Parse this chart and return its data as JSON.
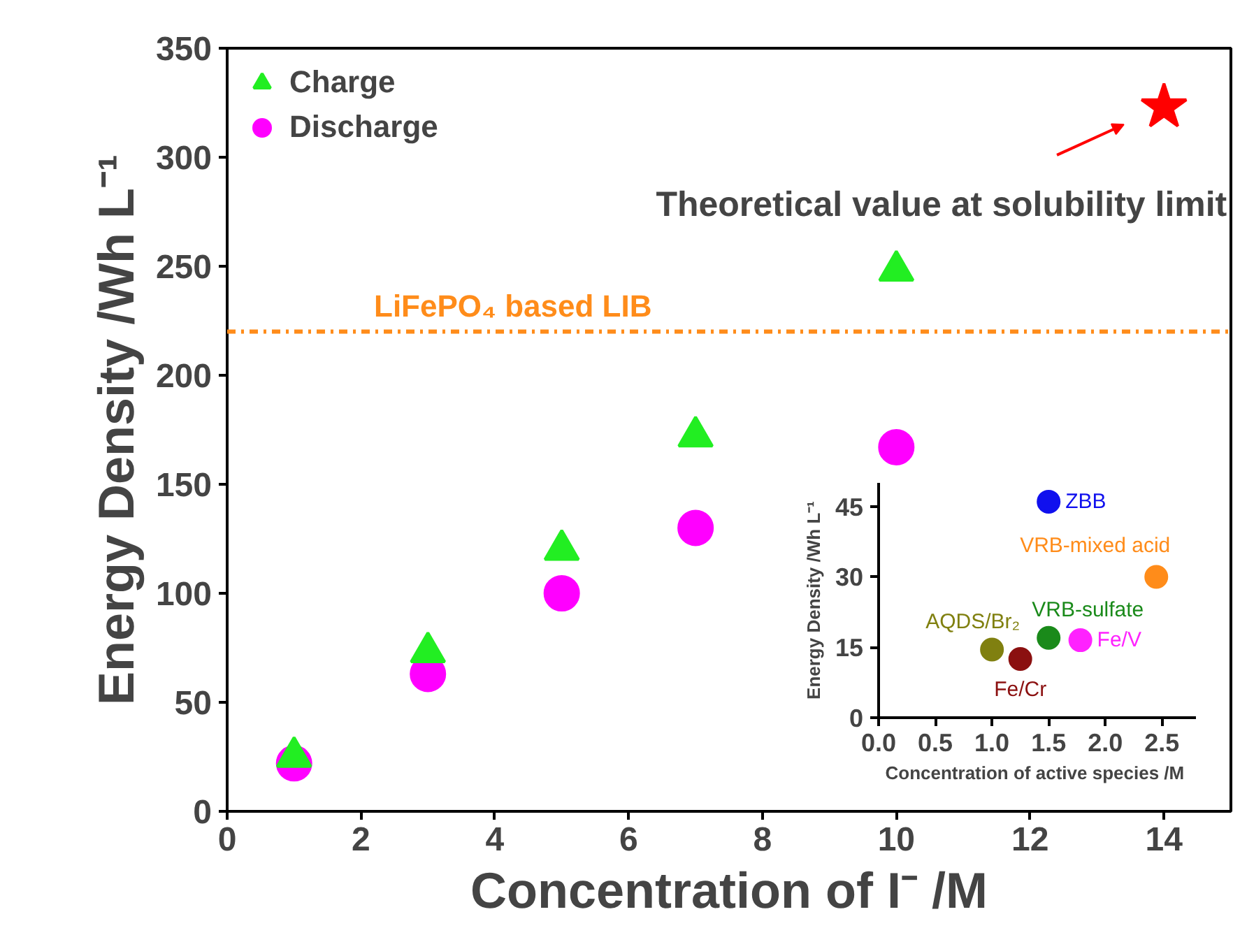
{
  "chart_data": [
    {
      "type": "scatter",
      "xlabel": "Concentration of I⁻ /M",
      "ylabel": "Energy Density /Wh L⁻¹",
      "xlim": [
        0,
        15
      ],
      "ylim": [
        0,
        350
      ],
      "xticks": [
        0,
        2,
        4,
        6,
        8,
        10,
        12,
        14
      ],
      "yticks": [
        0,
        50,
        100,
        150,
        200,
        250,
        300,
        350
      ],
      "grid": false,
      "legend": "top left",
      "series": [
        {
          "name": "Charge",
          "color": "#22ee22",
          "marker": "triangle",
          "x": [
            1,
            3,
            5,
            7,
            10
          ],
          "values": [
            25,
            73,
            120,
            172,
            248
          ]
        },
        {
          "name": "Discharge",
          "color": "#ff00ff",
          "marker": "circle",
          "x": [
            1,
            3,
            5,
            7,
            10
          ],
          "values": [
            22,
            63,
            100,
            130,
            167
          ]
        },
        {
          "color": "#ff0000",
          "marker": "star",
          "x": [
            14
          ],
          "values": [
            323
          ]
        }
      ],
      "ref_lines": [
        {
          "axis": "y",
          "value": 220,
          "label": "LiFePO₄ based LIB",
          "color": "#ff8c1a",
          "line_style": "dashdot"
        }
      ],
      "annotations": [
        {
          "text": "Theoretical value at solubility limit",
          "x": 14,
          "y": 323
        }
      ]
    },
    {
      "type": "scatter",
      "xlabel": "Concentration of active species  /M",
      "ylabel": "Energy Density /Wh L⁻¹",
      "xlim": [
        0,
        2.8
      ],
      "ylim": [
        0,
        50
      ],
      "xticks": [
        {
          "value": 0,
          "label": "0.0"
        },
        {
          "value": 0.5,
          "label": "0.5"
        },
        {
          "value": 1,
          "label": "1.0"
        },
        {
          "value": 1.5,
          "label": "1.5"
        },
        {
          "value": 2,
          "label": "2.0"
        },
        {
          "value": 2.5,
          "label": "2.5"
        }
      ],
      "yticks": [
        0,
        15,
        30,
        45
      ],
      "grid": false,
      "legend": false,
      "marker": "circle",
      "series": [
        {
          "name": "ZBB",
          "color": "#1010ee",
          "x": [
            1.5
          ],
          "values": [
            46
          ]
        },
        {
          "name": "VRB-mixed acid",
          "color": "#ff8c1a",
          "x": [
            2.45
          ],
          "values": [
            30
          ]
        },
        {
          "name": "AQDS/Br₂",
          "color": "#808010",
          "x": [
            1.0
          ],
          "values": [
            14.5
          ]
        },
        {
          "name": "VRB-sulfate",
          "color": "#1a8a1a",
          "x": [
            1.5
          ],
          "values": [
            17
          ]
        },
        {
          "name": "Fe/V",
          "color": "#ff22ff",
          "x": [
            1.78
          ],
          "values": [
            16.5
          ]
        },
        {
          "name": "Fe/Cr",
          "color": "#8b1010",
          "x": [
            1.25
          ],
          "values": [
            12.5
          ]
        }
      ]
    }
  ]
}
